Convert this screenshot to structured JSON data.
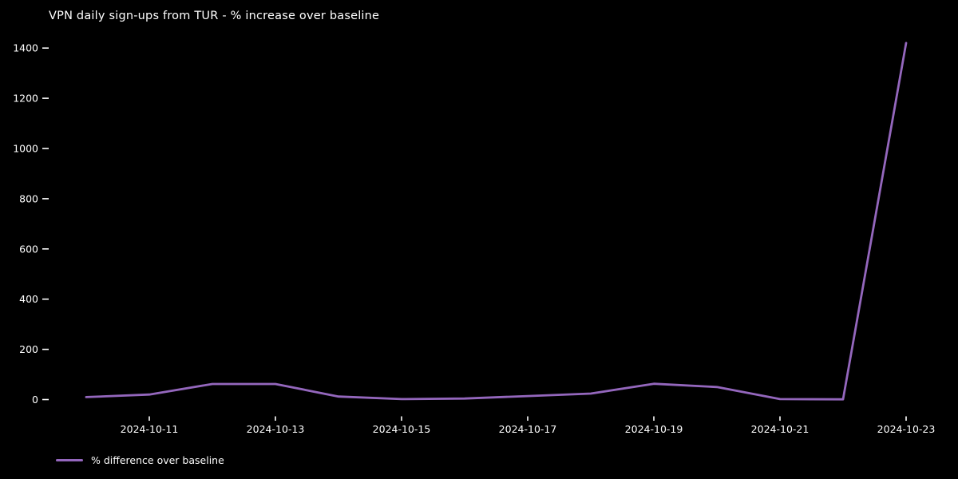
{
  "title": "VPN daily sign-ups from TUR - % increase over baseline",
  "colors": {
    "background": "#000000",
    "text": "#ffffff",
    "line": "#9467bd"
  },
  "legend": {
    "label": "% difference over baseline"
  },
  "chart_data": {
    "type": "line",
    "title": "VPN daily sign-ups from TUR - % increase over baseline",
    "x": [
      "2024-10-10",
      "2024-10-11",
      "2024-10-12",
      "2024-10-13",
      "2024-10-14",
      "2024-10-15",
      "2024-10-16",
      "2024-10-17",
      "2024-10-18",
      "2024-10-19",
      "2024-10-20",
      "2024-10-21",
      "2024-10-22",
      "2024-10-23"
    ],
    "series": [
      {
        "name": "% difference over baseline",
        "values": [
          10,
          20,
          62,
          62,
          12,
          2,
          4,
          14,
          24,
          63,
          50,
          2,
          1,
          1420
        ]
      }
    ],
    "xlabel": "",
    "ylabel": "",
    "ylim": [
      -70,
      1480
    ],
    "yticks": [
      0,
      200,
      400,
      600,
      800,
      1000,
      1200,
      1400
    ],
    "xticks": [
      "2024-10-11",
      "2024-10-13",
      "2024-10-15",
      "2024-10-17",
      "2024-10-19",
      "2024-10-21",
      "2024-10-23"
    ],
    "grid": false,
    "legend_position": "lower left"
  }
}
